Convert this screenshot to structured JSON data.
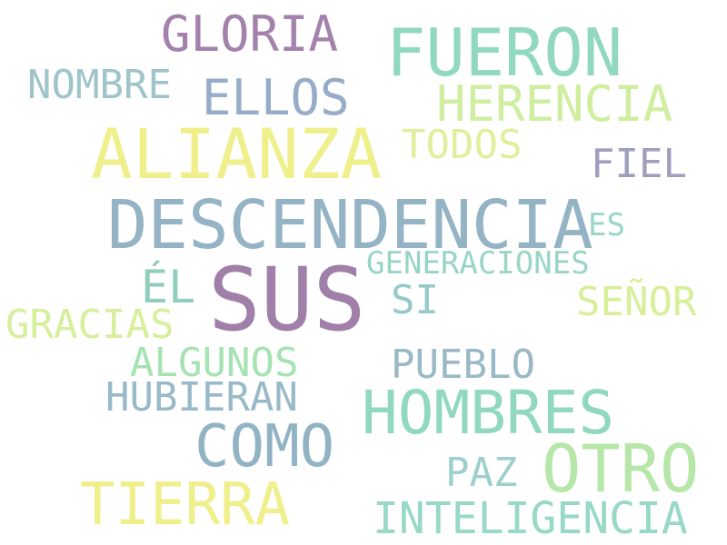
{
  "words": [
    {
      "id": "sus",
      "text": "SUS",
      "color": "#a07fa8"
    },
    {
      "id": "descendencia",
      "text": "DESCENDENCIA",
      "color": "#94b3c5"
    },
    {
      "id": "alianza",
      "text": "ALIANZA",
      "color": "#efef8c"
    },
    {
      "id": "fueron",
      "text": "FUERON",
      "color": "#90d8be"
    },
    {
      "id": "otro",
      "text": "OTRO",
      "color": "#b6e6a8"
    },
    {
      "id": "hombres",
      "text": "HOMBRES",
      "color": "#90d8be"
    },
    {
      "id": "tierra",
      "text": "TIERRA",
      "color": "#efef8c"
    },
    {
      "id": "como",
      "text": "COMO",
      "color": "#91b3c4"
    },
    {
      "id": "gloria",
      "text": "GLORIA",
      "color": "#a382ab"
    },
    {
      "id": "herencia",
      "text": "HERENCIA",
      "color": "#cfeea0"
    },
    {
      "id": "ellos",
      "text": "ELLOS",
      "color": "#96acc7"
    },
    {
      "id": "inteligencia",
      "text": "INTELIGENCIA",
      "color": "#97d8c6"
    },
    {
      "id": "nombre",
      "text": "NOMBRE",
      "color": "#9fc4c9"
    },
    {
      "id": "todos",
      "text": "TODOS",
      "color": "#e2ee9c"
    },
    {
      "id": "fiel",
      "text": "FIEL",
      "color": "#9f9fbd"
    },
    {
      "id": "gracias",
      "text": "GRACIAS",
      "color": "#d7ef9c"
    },
    {
      "id": "senor",
      "text": "SEÑOR",
      "color": "#d8ef9a"
    },
    {
      "id": "el",
      "text": "ÉL",
      "color": "#90cdbc"
    },
    {
      "id": "si",
      "text": "SI",
      "color": "#97c9c9"
    },
    {
      "id": "algunos",
      "text": "ALGUNOS",
      "color": "#a6e3b2"
    },
    {
      "id": "pueblo",
      "text": "PUEBLO",
      "color": "#9ab8c6"
    },
    {
      "id": "hubieran",
      "text": "HUBIERAN",
      "color": "#98b9c7"
    },
    {
      "id": "paz",
      "text": "PAZ",
      "color": "#9dd0cd"
    },
    {
      "id": "generaciones",
      "text": "GENERACIONES",
      "color": "#98d5c6"
    },
    {
      "id": "es",
      "text": "ES",
      "color": "#9ad5c6"
    }
  ]
}
